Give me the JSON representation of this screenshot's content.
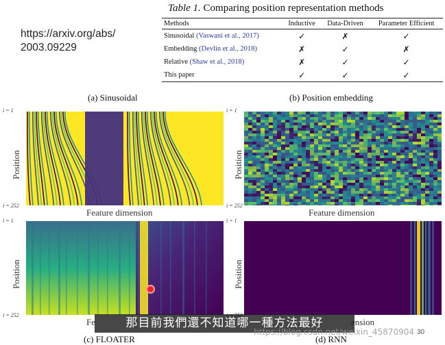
{
  "url": {
    "line1": "https://arxiv.org/abs/",
    "line2": "2003.09229"
  },
  "table": {
    "caption_prefix": "Table 1.",
    "caption_text": "Comparing position representation methods",
    "headers": [
      "Methods",
      "Inductive",
      "Data-Driven",
      "Parameter Efficient"
    ],
    "rows": [
      {
        "method": "Sinusoidal",
        "cite": "(Vaswani et al., 2017)",
        "marks": [
          "✓",
          "✗",
          "✓"
        ]
      },
      {
        "method": "Embedding",
        "cite": "(Devlin et al., 2018)",
        "marks": [
          "✗",
          "✓",
          "✗"
        ]
      },
      {
        "method": "Relative",
        "cite": "(Shaw et al., 2018)",
        "marks": [
          "✗",
          "✓",
          "✓"
        ]
      },
      {
        "method": "This paper",
        "cite": "",
        "marks": [
          "✓",
          "✓",
          "✓"
        ]
      }
    ]
  },
  "panels": {
    "a": {
      "title": "(a) Sinusoidal",
      "xlabel": "Feature dimension",
      "ylabel": "Position",
      "tick_top": "i = 1",
      "tick_bottom": "i = 252"
    },
    "b": {
      "title": "(b) Position embedding",
      "xlabel": "Feature dimension",
      "ylabel": "Position",
      "tick_top": "i = 1",
      "tick_bottom": "i = 252"
    },
    "c": {
      "title": "(c) FLOATER",
      "xlabel_visible": "Fe",
      "ylabel": "Position",
      "tick_top": "i = 1",
      "tick_bottom": "i = 252"
    },
    "d": {
      "title": "(d) RNN",
      "xlabel_visible": "ension",
      "ylabel": "Position",
      "tick_top": "i = 1",
      "tick_bottom": "i = 252"
    }
  },
  "overlay": {
    "subtitle": "那目前我們還不知道哪一種方法最好",
    "watermark": "https://blog.csdn.net/weixin_45870904",
    "page_number": "30"
  },
  "colors": {
    "viridis_dark": "#440154",
    "viridis_mid": "#21918c",
    "viridis_yellow": "#fde725",
    "citation_blue": "#2a3aa8",
    "cursor_red": "#e32626"
  }
}
